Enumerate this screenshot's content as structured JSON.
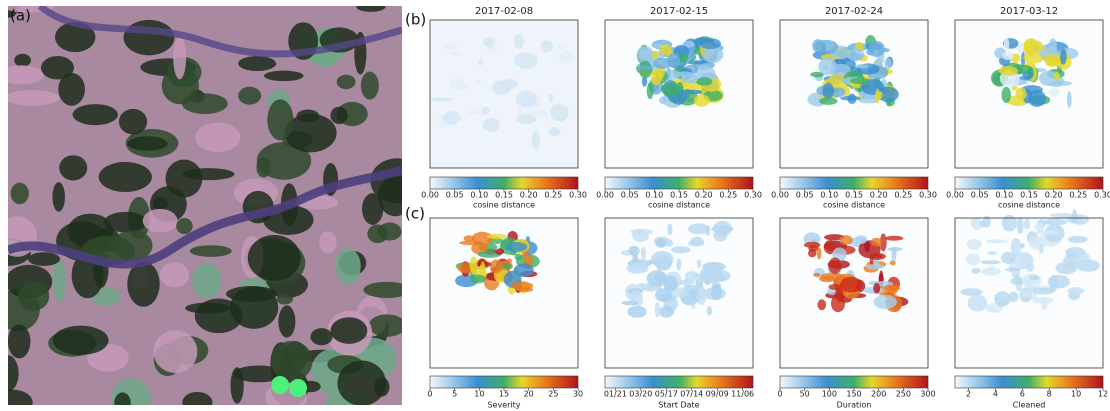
{
  "panel_labels": [
    "(a)",
    "(b)",
    "(c)"
  ],
  "rows": [
    {
      "panels": [
        {
          "title": "2017-02-08",
          "colorbar": {
            "label": "cosine distance",
            "lim": [
              0,
              0.3
            ],
            "ticks": [
              {
                "value": 0,
                "label": "0.00"
              },
              {
                "value": 0.05,
                "label": "0.05"
              },
              {
                "value": 0.1,
                "label": "0.10"
              },
              {
                "value": 0.15,
                "label": "0.15"
              },
              {
                "value": 0.2,
                "label": "0.20"
              },
              {
                "value": 0.25,
                "label": "0.25"
              },
              {
                "value": 0.3,
                "label": "0.30"
              }
            ]
          }
        },
        {
          "title": "2017-02-15",
          "colorbar": {
            "label": "cosine distance",
            "lim": [
              0,
              0.3
            ],
            "ticks": [
              {
                "value": 0,
                "label": "0.00"
              },
              {
                "value": 0.05,
                "label": "0.05"
              },
              {
                "value": 0.1,
                "label": "0.10"
              },
              {
                "value": 0.15,
                "label": "0.15"
              },
              {
                "value": 0.2,
                "label": "0.20"
              },
              {
                "value": 0.25,
                "label": "0.25"
              },
              {
                "value": 0.3,
                "label": "0.30"
              }
            ]
          }
        },
        {
          "title": "2017-02-24",
          "colorbar": {
            "label": "cosine distance",
            "lim": [
              0,
              0.3
            ],
            "ticks": [
              {
                "value": 0,
                "label": "0.00"
              },
              {
                "value": 0.05,
                "label": "0.05"
              },
              {
                "value": 0.1,
                "label": "0.10"
              },
              {
                "value": 0.15,
                "label": "0.15"
              },
              {
                "value": 0.2,
                "label": "0.20"
              },
              {
                "value": 0.25,
                "label": "0.25"
              },
              {
                "value": 0.3,
                "label": "0.30"
              }
            ]
          }
        },
        {
          "title": "2017-03-12",
          "colorbar": {
            "label": "cosine distance",
            "lim": [
              0,
              0.3
            ],
            "ticks": [
              {
                "value": 0,
                "label": "0.00"
              },
              {
                "value": 0.05,
                "label": "0.05"
              },
              {
                "value": 0.1,
                "label": "0.10"
              },
              {
                "value": 0.15,
                "label": "0.15"
              },
              {
                "value": 0.2,
                "label": "0.20"
              },
              {
                "value": 0.25,
                "label": "0.25"
              },
              {
                "value": 0.3,
                "label": "0.30"
              }
            ]
          }
        }
      ]
    },
    {
      "panels": [
        {
          "colorbar": {
            "label": "Severity",
            "lim": [
              0,
              30
            ],
            "ticks": [
              0,
              5,
              10,
              15,
              20,
              25,
              30
            ]
          }
        },
        {
          "colorbar": {
            "label": "Start Date",
            "ticks": [
              "01/21",
              "03/20",
              "05/17",
              "07/14",
              "09/09",
              "11/06"
            ]
          }
        },
        {
          "colorbar": {
            "label": "Duration",
            "lim": [
              0,
              300
            ],
            "ticks": [
              0,
              50,
              100,
              150,
              200,
              250,
              300
            ]
          }
        },
        {
          "colorbar": {
            "label": "Cleaned",
            "lim": [
              1,
              12
            ],
            "ticks": [
              2,
              4,
              6,
              8,
              10,
              12
            ]
          }
        }
      ]
    }
  ]
}
